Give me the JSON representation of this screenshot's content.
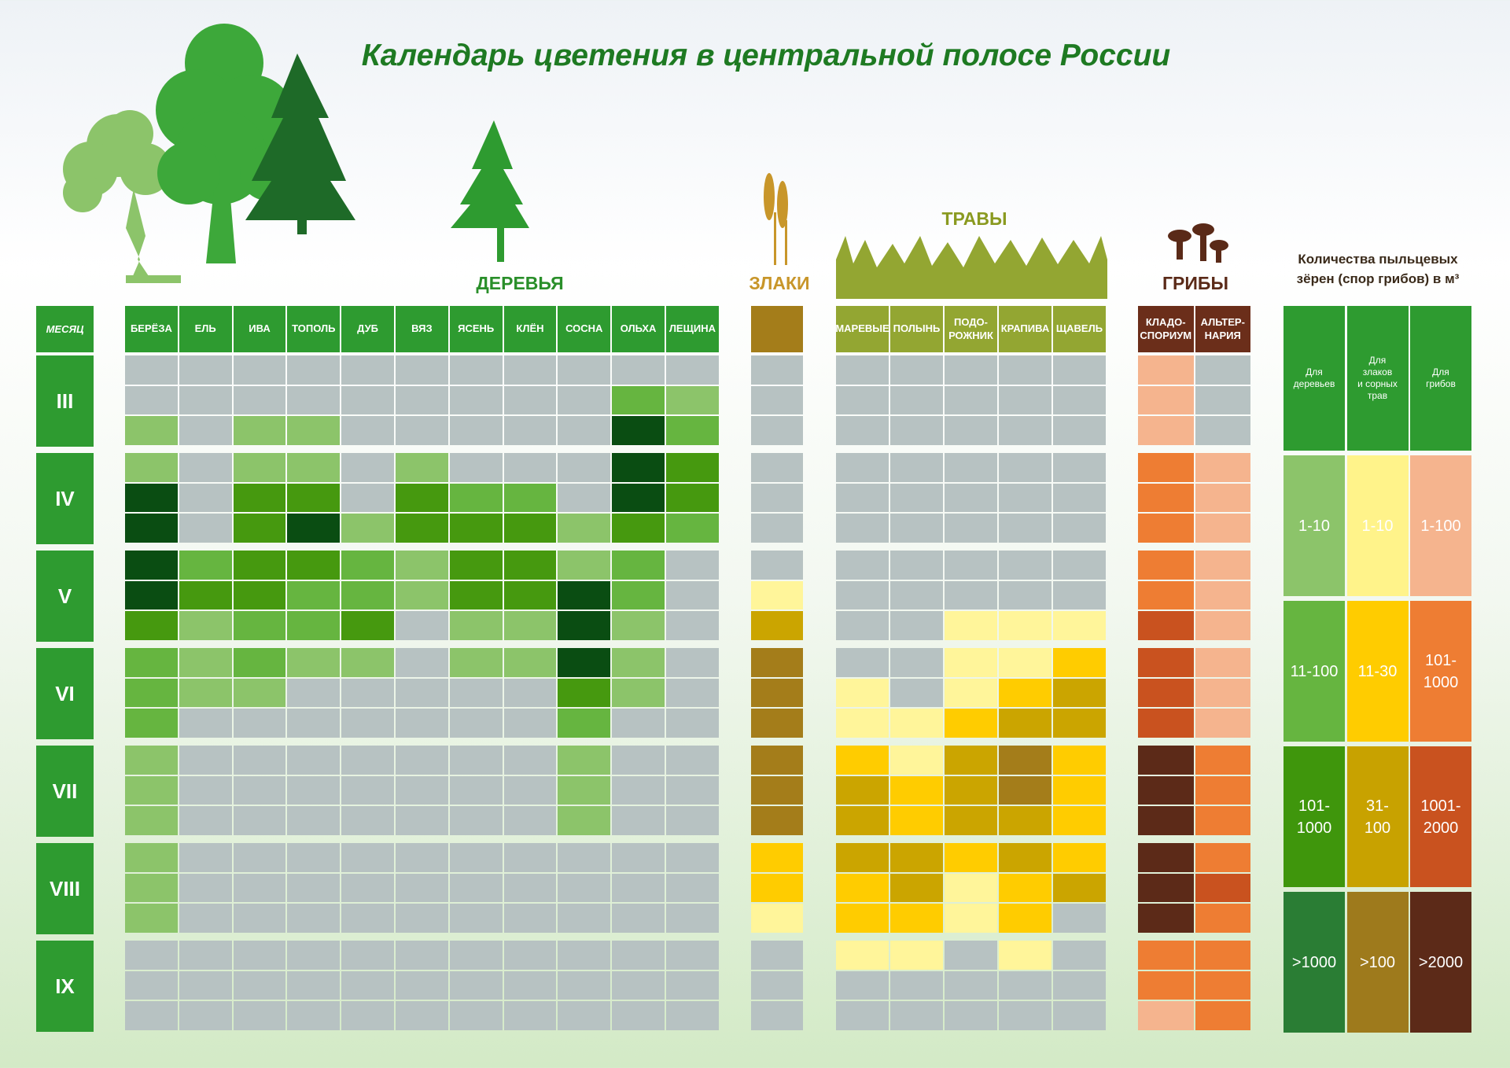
{
  "title": "Календарь цветения в центральной полосе России",
  "month_header": "МЕСЯЦ",
  "months": [
    "III",
    "IV",
    "V",
    "VI",
    "VII",
    "VIII",
    "IX"
  ],
  "groups": [
    {
      "label": "ДЕРЕВЬЯ",
      "label_color": "#2a8f2a",
      "header_color": "#2e9b30",
      "palette": [
        "#b7c2c2",
        "#8cc46a",
        "#66b540",
        "#46990f",
        "#0a4d12"
      ],
      "columns": [
        {
          "name": "БЕРЁЗА",
          "levels": [
            0,
            0,
            1,
            1,
            4,
            4,
            4,
            4,
            3,
            2,
            2,
            2,
            1,
            1,
            1,
            1,
            1,
            1,
            0,
            0,
            0
          ]
        },
        {
          "name": "ЕЛЬ",
          "levels": [
            0,
            0,
            0,
            0,
            0,
            0,
            2,
            3,
            1,
            1,
            1,
            0,
            0,
            0,
            0,
            0,
            0,
            0,
            0,
            0,
            0
          ]
        },
        {
          "name": "ИВА",
          "levels": [
            0,
            0,
            1,
            1,
            3,
            3,
            3,
            3,
            2,
            2,
            1,
            0,
            0,
            0,
            0,
            0,
            0,
            0,
            0,
            0,
            0
          ]
        },
        {
          "name": "ТОПОЛЬ",
          "levels": [
            0,
            0,
            1,
            1,
            3,
            4,
            3,
            2,
            2,
            1,
            0,
            0,
            0,
            0,
            0,
            0,
            0,
            0,
            0,
            0,
            0
          ]
        },
        {
          "name": "ДУБ",
          "levels": [
            0,
            0,
            0,
            0,
            0,
            1,
            2,
            2,
            3,
            1,
            0,
            0,
            0,
            0,
            0,
            0,
            0,
            0,
            0,
            0,
            0
          ]
        },
        {
          "name": "ВЯЗ",
          "levels": [
            0,
            0,
            0,
            1,
            3,
            3,
            1,
            1,
            0,
            0,
            0,
            0,
            0,
            0,
            0,
            0,
            0,
            0,
            0,
            0,
            0
          ]
        },
        {
          "name": "ЯСЕНЬ",
          "levels": [
            0,
            0,
            0,
            0,
            2,
            3,
            3,
            3,
            1,
            1,
            0,
            0,
            0,
            0,
            0,
            0,
            0,
            0,
            0,
            0,
            0
          ]
        },
        {
          "name": "КЛЁН",
          "levels": [
            0,
            0,
            0,
            0,
            2,
            3,
            3,
            3,
            1,
            1,
            0,
            0,
            0,
            0,
            0,
            0,
            0,
            0,
            0,
            0,
            0
          ]
        },
        {
          "name": "СОСНА",
          "levels": [
            0,
            0,
            0,
            0,
            0,
            1,
            1,
            4,
            4,
            4,
            3,
            2,
            1,
            1,
            1,
            0,
            0,
            0,
            0,
            0,
            0
          ]
        },
        {
          "name": "ОЛЬХА",
          "levels": [
            0,
            2,
            4,
            4,
            4,
            3,
            2,
            2,
            1,
            1,
            1,
            0,
            0,
            0,
            0,
            0,
            0,
            0,
            0,
            0,
            0
          ]
        },
        {
          "name": "ЛЕЩИНА",
          "levels": [
            0,
            1,
            2,
            3,
            3,
            2,
            0,
            0,
            0,
            0,
            0,
            0,
            0,
            0,
            0,
            0,
            0,
            0,
            0,
            0,
            0
          ]
        }
      ]
    },
    {
      "label": "ЗЛАКИ",
      "label_color": "#c8962a",
      "header_color": "#a47d1a",
      "palette": [
        "#b7c2c2",
        "#fff59a",
        "#ffcc00",
        "#cba500",
        "#a47d1a"
      ],
      "columns": [
        {
          "levels": [
            0,
            0,
            0,
            0,
            0,
            0,
            0,
            1,
            3,
            4,
            4,
            4,
            4,
            4,
            4,
            2,
            2,
            1,
            0,
            0,
            0
          ]
        }
      ]
    },
    {
      "label": "ТРАВЫ",
      "label_color": "#8a9a20",
      "header_color": "#93a632",
      "palette": [
        "#b7c2c2",
        "#fff59a",
        "#ffcc00",
        "#cba500",
        "#a47d1a"
      ],
      "columns": [
        {
          "name": "МАРЕВЫЕ",
          "levels": [
            0,
            0,
            0,
            0,
            0,
            0,
            0,
            0,
            0,
            0,
            1,
            1,
            2,
            3,
            3,
            3,
            2,
            2,
            1,
            0,
            0
          ]
        },
        {
          "name": "ПОЛЫНЬ",
          "levels": [
            0,
            0,
            0,
            0,
            0,
            0,
            0,
            0,
            0,
            0,
            0,
            1,
            1,
            2,
            2,
            3,
            3,
            2,
            1,
            0,
            0
          ]
        },
        {
          "name": "ПОДО-\nРОЖНИК",
          "levels": [
            0,
            0,
            0,
            0,
            0,
            0,
            0,
            0,
            1,
            1,
            1,
            2,
            3,
            3,
            3,
            2,
            1,
            1,
            0,
            0,
            0
          ]
        },
        {
          "name": "КРАПИВА",
          "levels": [
            0,
            0,
            0,
            0,
            0,
            0,
            0,
            0,
            1,
            1,
            2,
            3,
            4,
            4,
            3,
            3,
            2,
            2,
            1,
            0,
            0
          ]
        },
        {
          "name": "ЩАВЕЛЬ",
          "levels": [
            0,
            0,
            0,
            0,
            0,
            0,
            0,
            0,
            1,
            2,
            3,
            3,
            2,
            2,
            2,
            2,
            3,
            0,
            0,
            0,
            0
          ]
        }
      ]
    },
    {
      "label": "ГРИБЫ",
      "label_color": "#5a2a18",
      "header_color": "#6b2e1a",
      "palette": [
        "#b7c2c2",
        "#f5b48e",
        "#ee7d33",
        "#c9521f",
        "#5c2a18"
      ],
      "columns": [
        {
          "name": "КЛАДО-\nСПОРИУМ",
          "levels": [
            1,
            1,
            1,
            2,
            2,
            2,
            2,
            2,
            3,
            3,
            3,
            3,
            4,
            4,
            4,
            4,
            4,
            4,
            2,
            2,
            1
          ]
        },
        {
          "name": "АЛЬТЕР-\nНАРИЯ",
          "levels": [
            0,
            0,
            0,
            1,
            1,
            1,
            1,
            1,
            1,
            1,
            1,
            1,
            2,
            2,
            2,
            2,
            3,
            2,
            2,
            2,
            2
          ]
        }
      ]
    }
  ],
  "legend": {
    "title": "Количества пыльцевых\nзёрен (спор грибов) в м³",
    "header_color": "#2e9b30",
    "columns": [
      {
        "header": "Для\nдеревьев",
        "ranges": [
          "1-10",
          "11-100",
          "101-\n1000",
          ">1000"
        ],
        "colors": [
          "#8cc46a",
          "#66b540",
          "#3f960c",
          "#2a7d34"
        ]
      },
      {
        "header": "Для\nзлаков\nи сорных\nтрав",
        "ranges": [
          "1-10",
          "11-30",
          "31-\n100",
          ">100"
        ],
        "colors": [
          "#fff38a",
          "#ffcc00",
          "#c8a200",
          "#9e7a1c"
        ]
      },
      {
        "header": "Для\nгрибов",
        "ranges": [
          "1-100",
          "101-\n1000",
          "1001-\n2000",
          ">2000"
        ],
        "colors": [
          "#f5b48e",
          "#ee7d33",
          "#c9521f",
          "#5c2a18"
        ]
      }
    ]
  }
}
